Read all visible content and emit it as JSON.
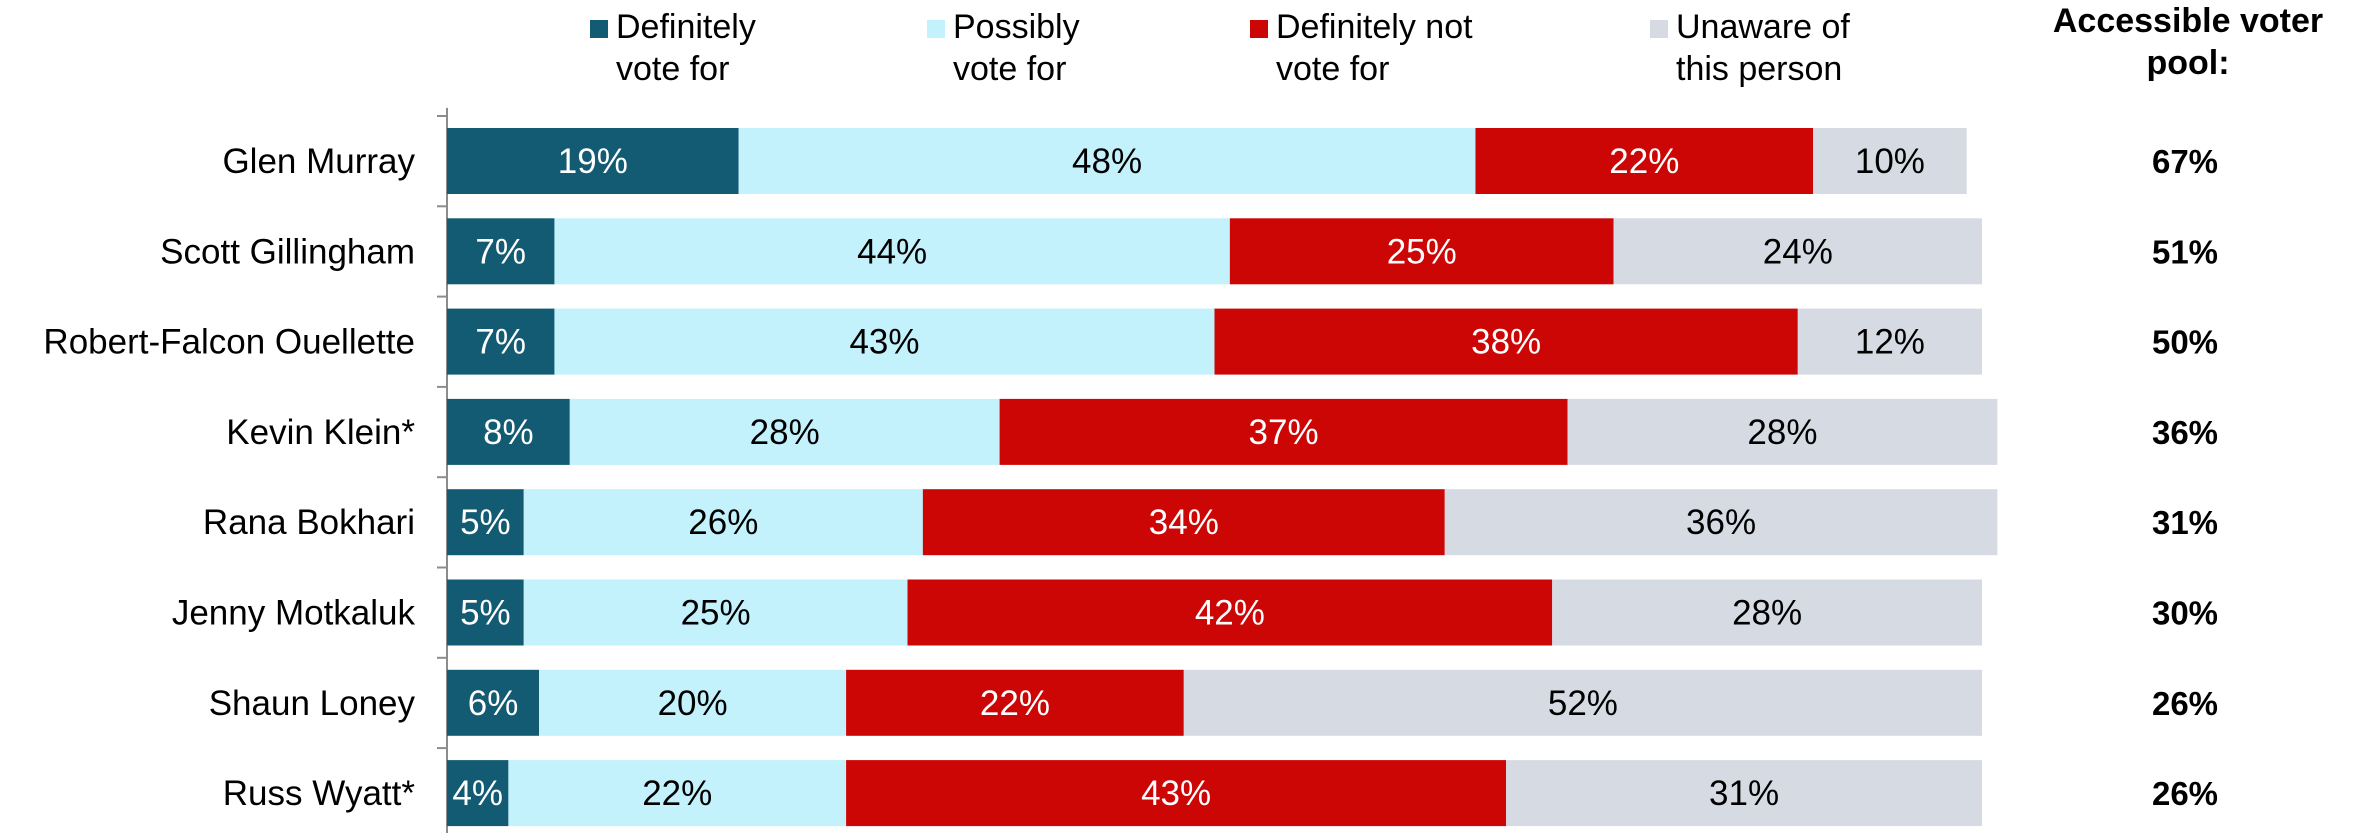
{
  "chart_data": {
    "type": "bar",
    "orientation": "horizontal",
    "stacked": true,
    "title": "",
    "xlabel": "",
    "ylabel": "",
    "xlim": [
      0,
      100
    ],
    "legend_position": "top",
    "grid": false,
    "categories": [
      "Glen Murray",
      "Scott Gillingham",
      "Robert-Falcon Ouellette",
      "Kevin Klein*",
      "Rana Bokhari",
      "Jenny Motkaluk",
      "Shaun Loney",
      "Russ Wyatt*"
    ],
    "series": [
      {
        "name": "Definitely vote for",
        "color": "#135b73",
        "text_color": "#ffffff",
        "values": [
          19,
          7,
          7,
          8,
          5,
          5,
          6,
          4
        ]
      },
      {
        "name": "Possibly vote for",
        "color": "#c3f1fc",
        "text_color": "#000000",
        "values": [
          48,
          44,
          43,
          28,
          26,
          25,
          20,
          22
        ]
      },
      {
        "name": "Definitely not vote for",
        "color": "#cc0605",
        "text_color": "#ffffff",
        "values": [
          22,
          25,
          38,
          37,
          34,
          42,
          22,
          43
        ]
      },
      {
        "name": "Unaware of this person",
        "color": "#d6dbe3",
        "text_color": "#000000",
        "values": [
          10,
          24,
          12,
          28,
          36,
          28,
          52,
          31
        ]
      }
    ],
    "value_suffix": "%",
    "side_column": {
      "title": "Accessible voter pool:",
      "values": [
        "67%",
        "51%",
        "50%",
        "36%",
        "31%",
        "30%",
        "26%",
        "26%"
      ]
    }
  }
}
